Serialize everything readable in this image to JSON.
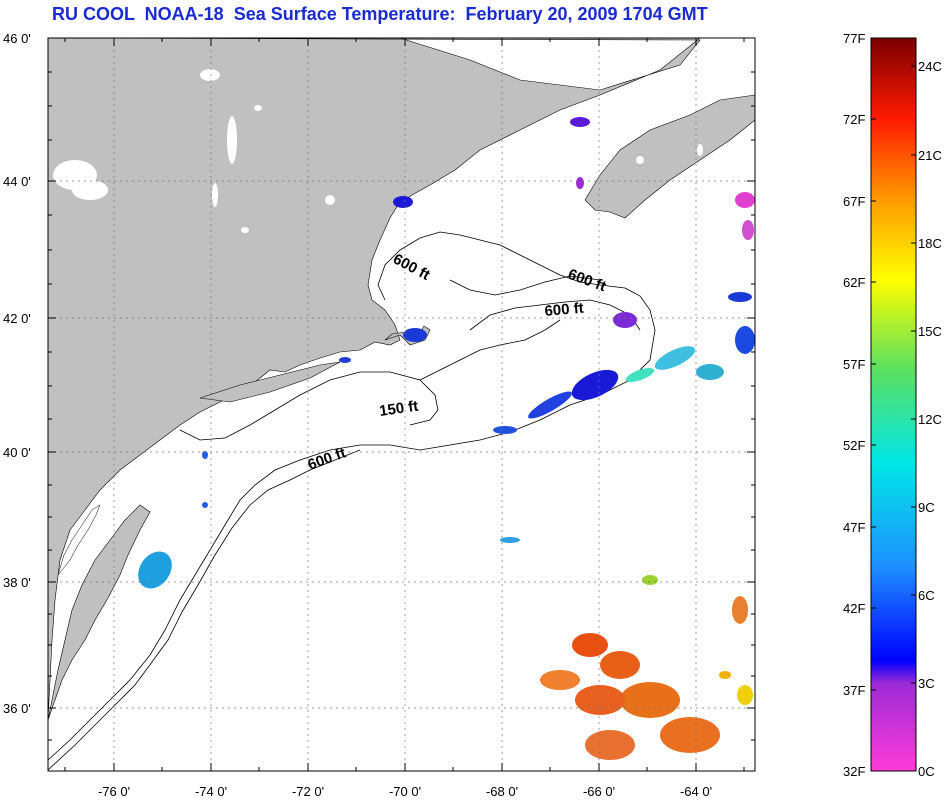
{
  "title": "RU COOL  NOAA-18  Sea Surface Temperature:  February 20, 2009 1704 GMT",
  "map": {
    "lat_labels": [
      "46 0'",
      "44 0'",
      "42 0'",
      "40 0'",
      "38 0'",
      "36 0'"
    ],
    "lon_labels": [
      "-76 0'",
      "-74 0'",
      "-72 0'",
      "-70 0'",
      "-68 0'",
      "-66 0'",
      "-64 0'"
    ],
    "contour_labels": [
      "600 ft",
      "600 ft",
      "600 ft",
      "150 ft",
      "600 ft"
    ],
    "land_color": "#c0c0c0",
    "water_color": "#ffffff"
  },
  "colorbar": {
    "f_labels": [
      "77F",
      "72F",
      "67F",
      "62F",
      "57F",
      "52F",
      "47F",
      "42F",
      "37F",
      "32F"
    ],
    "c_labels": [
      "24C",
      "21C",
      "18C",
      "15C",
      "12C",
      "9C",
      "6C",
      "3C",
      "0C"
    ]
  }
}
